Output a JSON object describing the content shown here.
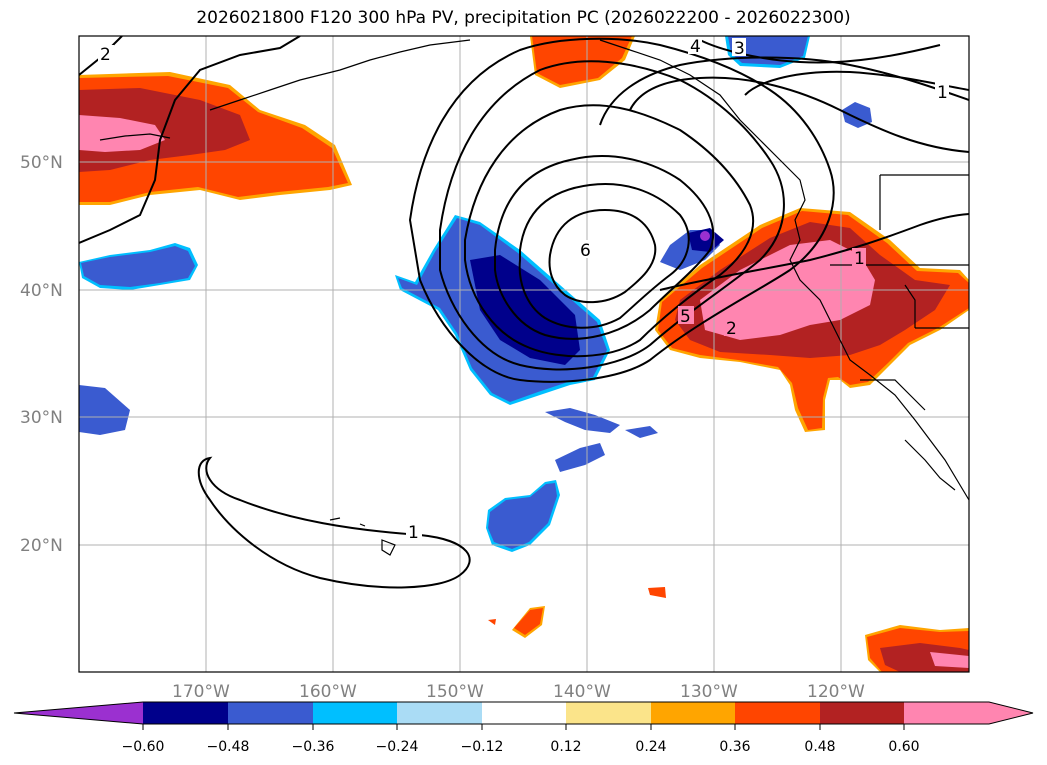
{
  "title": "2026021800 F120 300 hPa PV, precipitation PC (2026022200 - 2026022300)",
  "map": {
    "lat_labels": [
      "50°N",
      "40°N",
      "30°N",
      "20°N"
    ],
    "lon_labels": [
      "170°W",
      "160°W",
      "150°W",
      "140°W",
      "130°W",
      "120°W"
    ],
    "contour_labels": [
      "2",
      "4",
      "3",
      "1",
      "6",
      "5",
      "2",
      "1",
      "1"
    ]
  },
  "colorbar": {
    "ticks": [
      "−0.60",
      "−0.48",
      "−0.36",
      "−0.24",
      "−0.12",
      "0.12",
      "0.24",
      "0.36",
      "0.48",
      "0.60"
    ],
    "colors": [
      "#9b30d0",
      "#00008b",
      "#3a5bd0",
      "#00bfff",
      "#aadcf5",
      "#ffffff",
      "#fbe48a",
      "#ffa500",
      "#ff4500",
      "#b22222",
      "#ff85b0",
      "#ff85b0"
    ]
  },
  "colors": {
    "neg_strong": "#00008b",
    "neg_mid": "#3a5bd0",
    "neg_edge": "#00bfff",
    "pos_mid": "#ff4500",
    "pos_strong": "#b22222",
    "pos_max": "#ff85b0",
    "pos_edge": "#ffa500",
    "purple": "#9b30d0"
  }
}
